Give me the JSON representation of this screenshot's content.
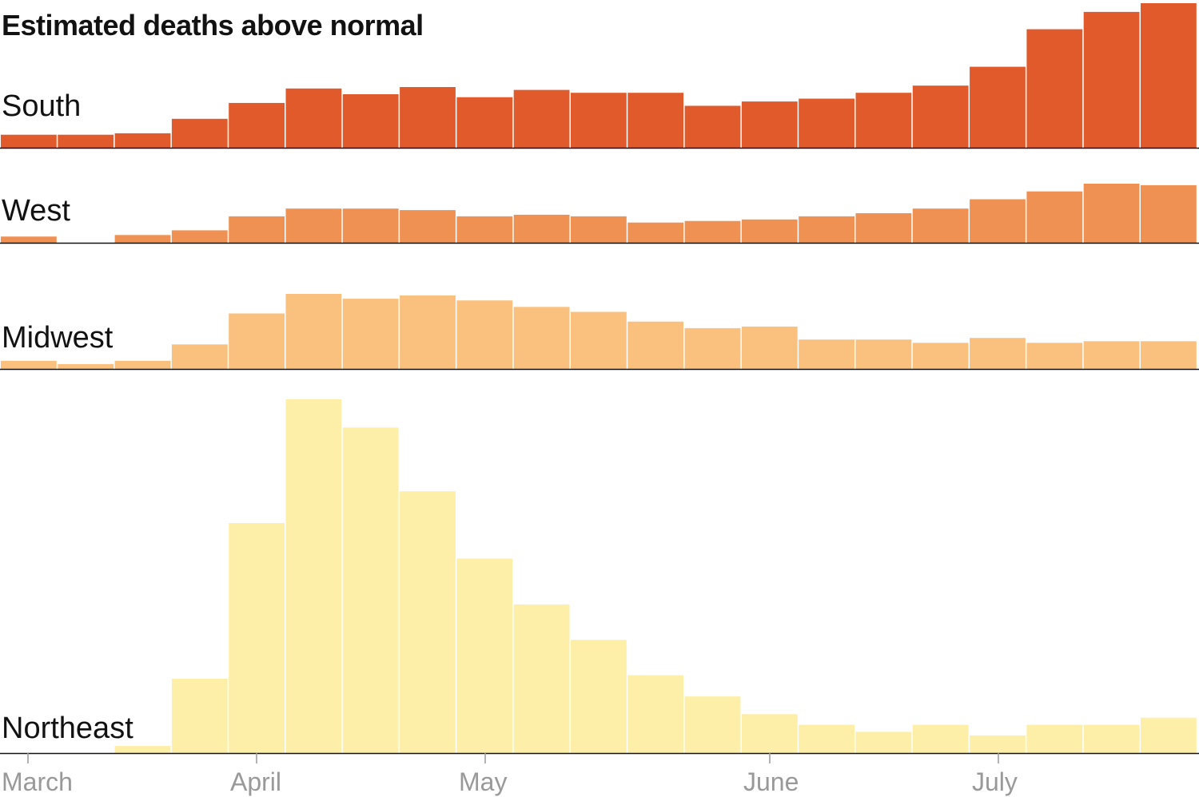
{
  "title": "Estimated deaths above normal",
  "colors": {
    "south": "#e05a2b",
    "west": "#f09154",
    "midwest": "#f9c07e",
    "northeast": "#fdeea8",
    "baseline": "#121212",
    "tick": "#999999"
  },
  "chart_data": {
    "type": "bar",
    "title": "Estimated deaths above normal",
    "x_ticks": [
      "March",
      "April",
      "May",
      "June",
      "July"
    ],
    "bar_count": 21,
    "unit": "relative weekly excess deaths",
    "series": [
      {
        "name": "South",
        "color": "#e05a2b",
        "values": [
          9,
          9,
          10,
          20,
          31,
          41,
          37,
          42,
          35,
          40,
          38,
          38,
          29,
          32,
          34,
          38,
          43,
          56,
          82,
          94,
          100
        ]
      },
      {
        "name": "West",
        "color": "#f09154",
        "values": [
          4,
          0,
          5,
          8,
          17,
          22,
          22,
          21,
          17,
          18,
          17,
          13,
          14,
          15,
          17,
          19,
          22,
          28,
          33,
          38,
          37
        ]
      },
      {
        "name": "Midwest",
        "color": "#f9c07e",
        "values": [
          5,
          3,
          5,
          15,
          34,
          46,
          43,
          45,
          42,
          38,
          35,
          29,
          25,
          26,
          18,
          18,
          16,
          19,
          16,
          17,
          17
        ]
      },
      {
        "name": "Northeast",
        "color": "#fdeea8",
        "values": [
          0,
          0,
          2,
          21,
          65,
          100,
          92,
          74,
          55,
          42,
          32,
          22,
          16,
          11,
          8,
          6,
          8,
          5,
          8,
          8,
          10
        ]
      }
    ]
  }
}
